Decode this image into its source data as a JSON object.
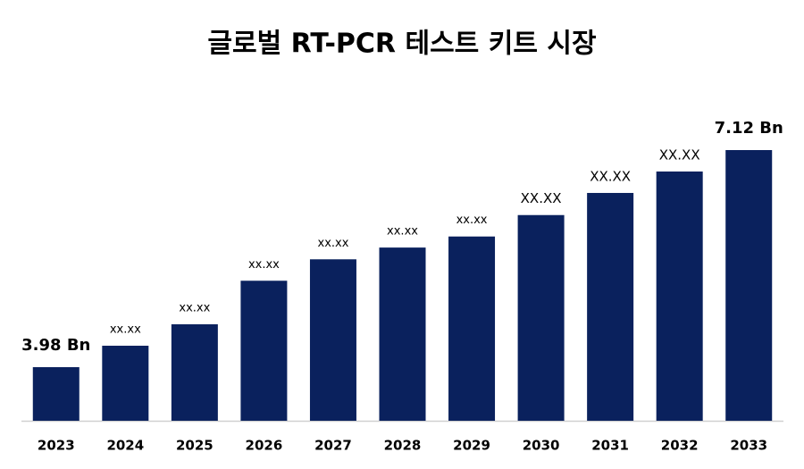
{
  "chart_data": {
    "type": "bar",
    "title": "글로벌 RT-PCR 테스트 키트 시장",
    "categories": [
      "2023",
      "2024",
      "2025",
      "2026",
      "2027",
      "2028",
      "2029",
      "2030",
      "2031",
      "2032",
      "2033"
    ],
    "values": [
      3.98,
      4.29,
      4.6,
      5.23,
      5.54,
      5.71,
      5.87,
      6.18,
      6.5,
      6.81,
      7.12
    ],
    "value_labels": [
      "3.98 Bn",
      "xx.xx",
      "xx.xx",
      "xx.xx",
      "xx.xx",
      "xx.xx",
      "xx.xx",
      "XX.XX",
      "XX.XX",
      "XX.XX",
      "7.12 Bn"
    ],
    "color": "#0a215d"
  }
}
